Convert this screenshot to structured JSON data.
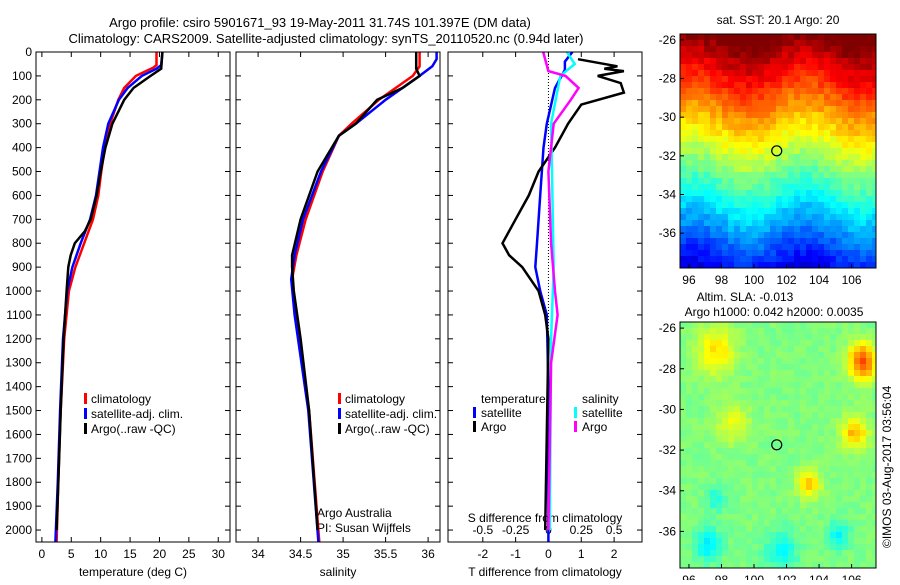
{
  "header": {
    "title_line1": "Argo profile: csiro 5901671_93 19-May-2011 31.74S 101.397E (DM data)",
    "title_line2": "Climatology: CARS2009. Satellite-adjusted climatology: synTS_20110520.nc (0.94d later)"
  },
  "credits": {
    "group": "Argo Australia",
    "pi": "PI: Susan Wijffels",
    "footer": "©IMOS 03-Aug-2017 03:56:04"
  },
  "colors": {
    "climatology": "#ff0000",
    "satellite": "#0000ff",
    "argo": "#000000",
    "sal_satellite": "#00ffff",
    "sal_argo": "#ff00ff"
  },
  "chart_data": [
    {
      "type": "line",
      "title": "",
      "xlabel": "temperature (deg C)",
      "ylabel": "",
      "xlim": [
        -1,
        32
      ],
      "ylim": [
        2050,
        0
      ],
      "xticks": [
        0,
        5,
        10,
        15,
        20,
        25,
        30
      ],
      "yticks": [
        0,
        100,
        200,
        300,
        400,
        500,
        600,
        700,
        800,
        900,
        1000,
        1100,
        1200,
        1300,
        1400,
        1500,
        1600,
        1700,
        1800,
        1900,
        2000
      ],
      "legend": [
        "climatology",
        "satellite-adj. clim.",
        "Argo(..raw -QC)"
      ],
      "series": [
        {
          "name": "climatology",
          "color": "#ff0000",
          "depth": [
            0,
            55,
            65,
            100,
            150,
            200,
            300,
            400,
            500,
            600,
            700,
            800,
            900,
            1000,
            1200,
            1500,
            1800,
            2050
          ],
          "values": [
            19.5,
            19.5,
            19,
            16,
            14,
            13,
            11.6,
            10.7,
            10.1,
            9.6,
            8.7,
            7.2,
            5.7,
            4.6,
            3.8,
            3.2,
            2.8,
            2.5
          ]
        },
        {
          "name": "satellite-adj. clim.",
          "color": "#0000ff",
          "depth": [
            0,
            55,
            70,
            100,
            150,
            200,
            300,
            400,
            500,
            600,
            700,
            800,
            900,
            1000,
            1200,
            1500,
            1800,
            2050
          ],
          "values": [
            20.5,
            20.3,
            19.5,
            17,
            14.6,
            13.1,
            11.3,
            10.4,
            9.8,
            9.2,
            8.2,
            6.6,
            5.2,
            4.3,
            3.6,
            3.1,
            2.7,
            2.3
          ]
        },
        {
          "name": "Argo(..raw -QC)",
          "color": "#000000",
          "depth": [
            0,
            70,
            100,
            150,
            200,
            300,
            400,
            500,
            600,
            700,
            750,
            800,
            850,
            900,
            1000,
            1200,
            1500,
            1800,
            2000
          ],
          "values": [
            20.5,
            20.3,
            18.5,
            15.6,
            14,
            12,
            10.8,
            10,
            9.3,
            8.3,
            7.3,
            5.6,
            4.9,
            4.5,
            4.2,
            3.7,
            3.2,
            2.8,
            2.5
          ]
        }
      ]
    },
    {
      "type": "line",
      "xlabel": "salinity",
      "xlim": [
        33.74,
        36.14
      ],
      "ylim": [
        2050,
        0
      ],
      "xticks": [
        34,
        34.5,
        35,
        35.5,
        36
      ],
      "legend": [
        "climatology",
        "satellite-adj. clim.",
        "Argo(..raw -QC)"
      ],
      "series": [
        {
          "name": "climatology",
          "color": "#ff0000",
          "depth": [
            0,
            60,
            100,
            200,
            300,
            350,
            500,
            700,
            850,
            950,
            1100,
            1500,
            2050
          ],
          "values": [
            35.9,
            35.9,
            35.82,
            35.42,
            35.1,
            34.95,
            34.76,
            34.56,
            34.45,
            34.4,
            34.44,
            34.6,
            34.72
          ]
        },
        {
          "name": "satellite-adj. clim.",
          "color": "#0000ff",
          "depth": [
            0,
            30,
            60,
            100,
            200,
            300,
            350,
            500,
            700,
            850,
            950,
            1100,
            1500,
            2050
          ],
          "values": [
            36.1,
            36.1,
            36.05,
            35.9,
            35.5,
            35.15,
            34.95,
            34.74,
            34.53,
            34.43,
            34.39,
            34.43,
            34.59,
            34.71
          ]
        },
        {
          "name": "Argo(..raw -QC)",
          "color": "#000000",
          "depth": [
            0,
            70,
            100,
            150,
            200,
            300,
            350,
            500,
            700,
            850,
            900,
            1000,
            1200,
            1500,
            2000
          ],
          "values": [
            35.86,
            35.86,
            35.9,
            35.7,
            35.4,
            35.15,
            34.95,
            34.7,
            34.5,
            34.4,
            34.4,
            34.42,
            34.5,
            34.6,
            34.7
          ]
        }
      ]
    },
    {
      "type": "line",
      "xlabel": "T difference from climatology",
      "xlabel2": "S difference from climatology",
      "xlim": [
        -3.06,
        2.85
      ],
      "xticks": [
        -2,
        -1,
        0,
        1,
        2
      ],
      "xticks_S": [
        "-0.5",
        "-0.25",
        "0",
        "0.25",
        "0.5"
      ],
      "xticks_S_values": [
        -0.5,
        -0.25,
        0,
        0.25,
        0.5
      ],
      "legend_temperature_title": "temperature",
      "legend_salinity_title": "salinity",
      "legend": [
        "satellite",
        "Argo",
        "satellite",
        "Argo"
      ],
      "series": [
        {
          "name": "T satellite",
          "color": "#0000ff",
          "units": "T",
          "depth": [
            0,
            40,
            75,
            150,
            300,
            400,
            600,
            800,
            900,
            1000,
            1100,
            1400,
            2050
          ],
          "values": [
            0.73,
            0.5,
            0.5,
            0.2,
            -0.05,
            -0.15,
            -0.25,
            -0.35,
            -0.4,
            -0.25,
            -0.05,
            0,
            0
          ]
        },
        {
          "name": "T Argo",
          "color": "#000000",
          "units": "T",
          "depth": [
            30,
            60,
            70,
            80,
            100,
            130,
            170,
            220,
            300,
            400,
            500,
            600,
            700,
            800,
            850,
            900,
            1000,
            1100,
            1200,
            2000
          ],
          "values": [
            0.9,
            2.1,
            1.7,
            2.3,
            1.5,
            2.2,
            2.3,
            1.0,
            0.6,
            0.2,
            -0.3,
            -0.6,
            -1.0,
            -1.4,
            -1.2,
            -0.8,
            -0.3,
            -0.1,
            0,
            -0.1
          ]
        },
        {
          "name": "S satellite",
          "color": "#00ffff",
          "units": "S",
          "depth": [
            0,
            50,
            100,
            300,
            600,
            900,
            1200,
            2000
          ],
          "values": [
            0.14,
            0.2,
            0.09,
            0.02,
            0.03,
            0.04,
            0.02,
            0.01
          ]
        },
        {
          "name": "S Argo",
          "color": "#ff00ff",
          "units": "S",
          "depth": [
            0,
            80,
            100,
            150,
            200,
            300,
            500,
            800,
            1000,
            1100,
            1300,
            2000
          ],
          "values": [
            -0.04,
            0,
            0.13,
            0.23,
            0.17,
            0.04,
            0,
            0.02,
            0.05,
            0.07,
            0.02,
            0
          ]
        }
      ]
    },
    {
      "type": "heatmap",
      "title": "sat. SST: 20.1 Argo: 20",
      "xlim": [
        95.45,
        107.5
      ],
      "ylim": [
        -37.8,
        -25.7
      ],
      "xticks": [
        96,
        98,
        100,
        102,
        104,
        106
      ],
      "yticks": [
        -26,
        -28,
        -30,
        -32,
        -34,
        -36
      ],
      "marker": {
        "lon": 101.397,
        "lat": -31.74
      }
    },
    {
      "type": "heatmap",
      "title_line1": "Altim. SLA: -0.013",
      "title_line2": "Argo h1000: 0.042 h2000: 0.0035",
      "xlim": [
        95.45,
        107.5
      ],
      "ylim": [
        -37.8,
        -25.7
      ],
      "xticks": [
        96,
        98,
        100,
        102,
        104,
        106
      ],
      "yticks": [
        -26,
        -28,
        -30,
        -32,
        -34,
        -36
      ],
      "marker": {
        "lon": 101.397,
        "lat": -31.74
      }
    }
  ]
}
